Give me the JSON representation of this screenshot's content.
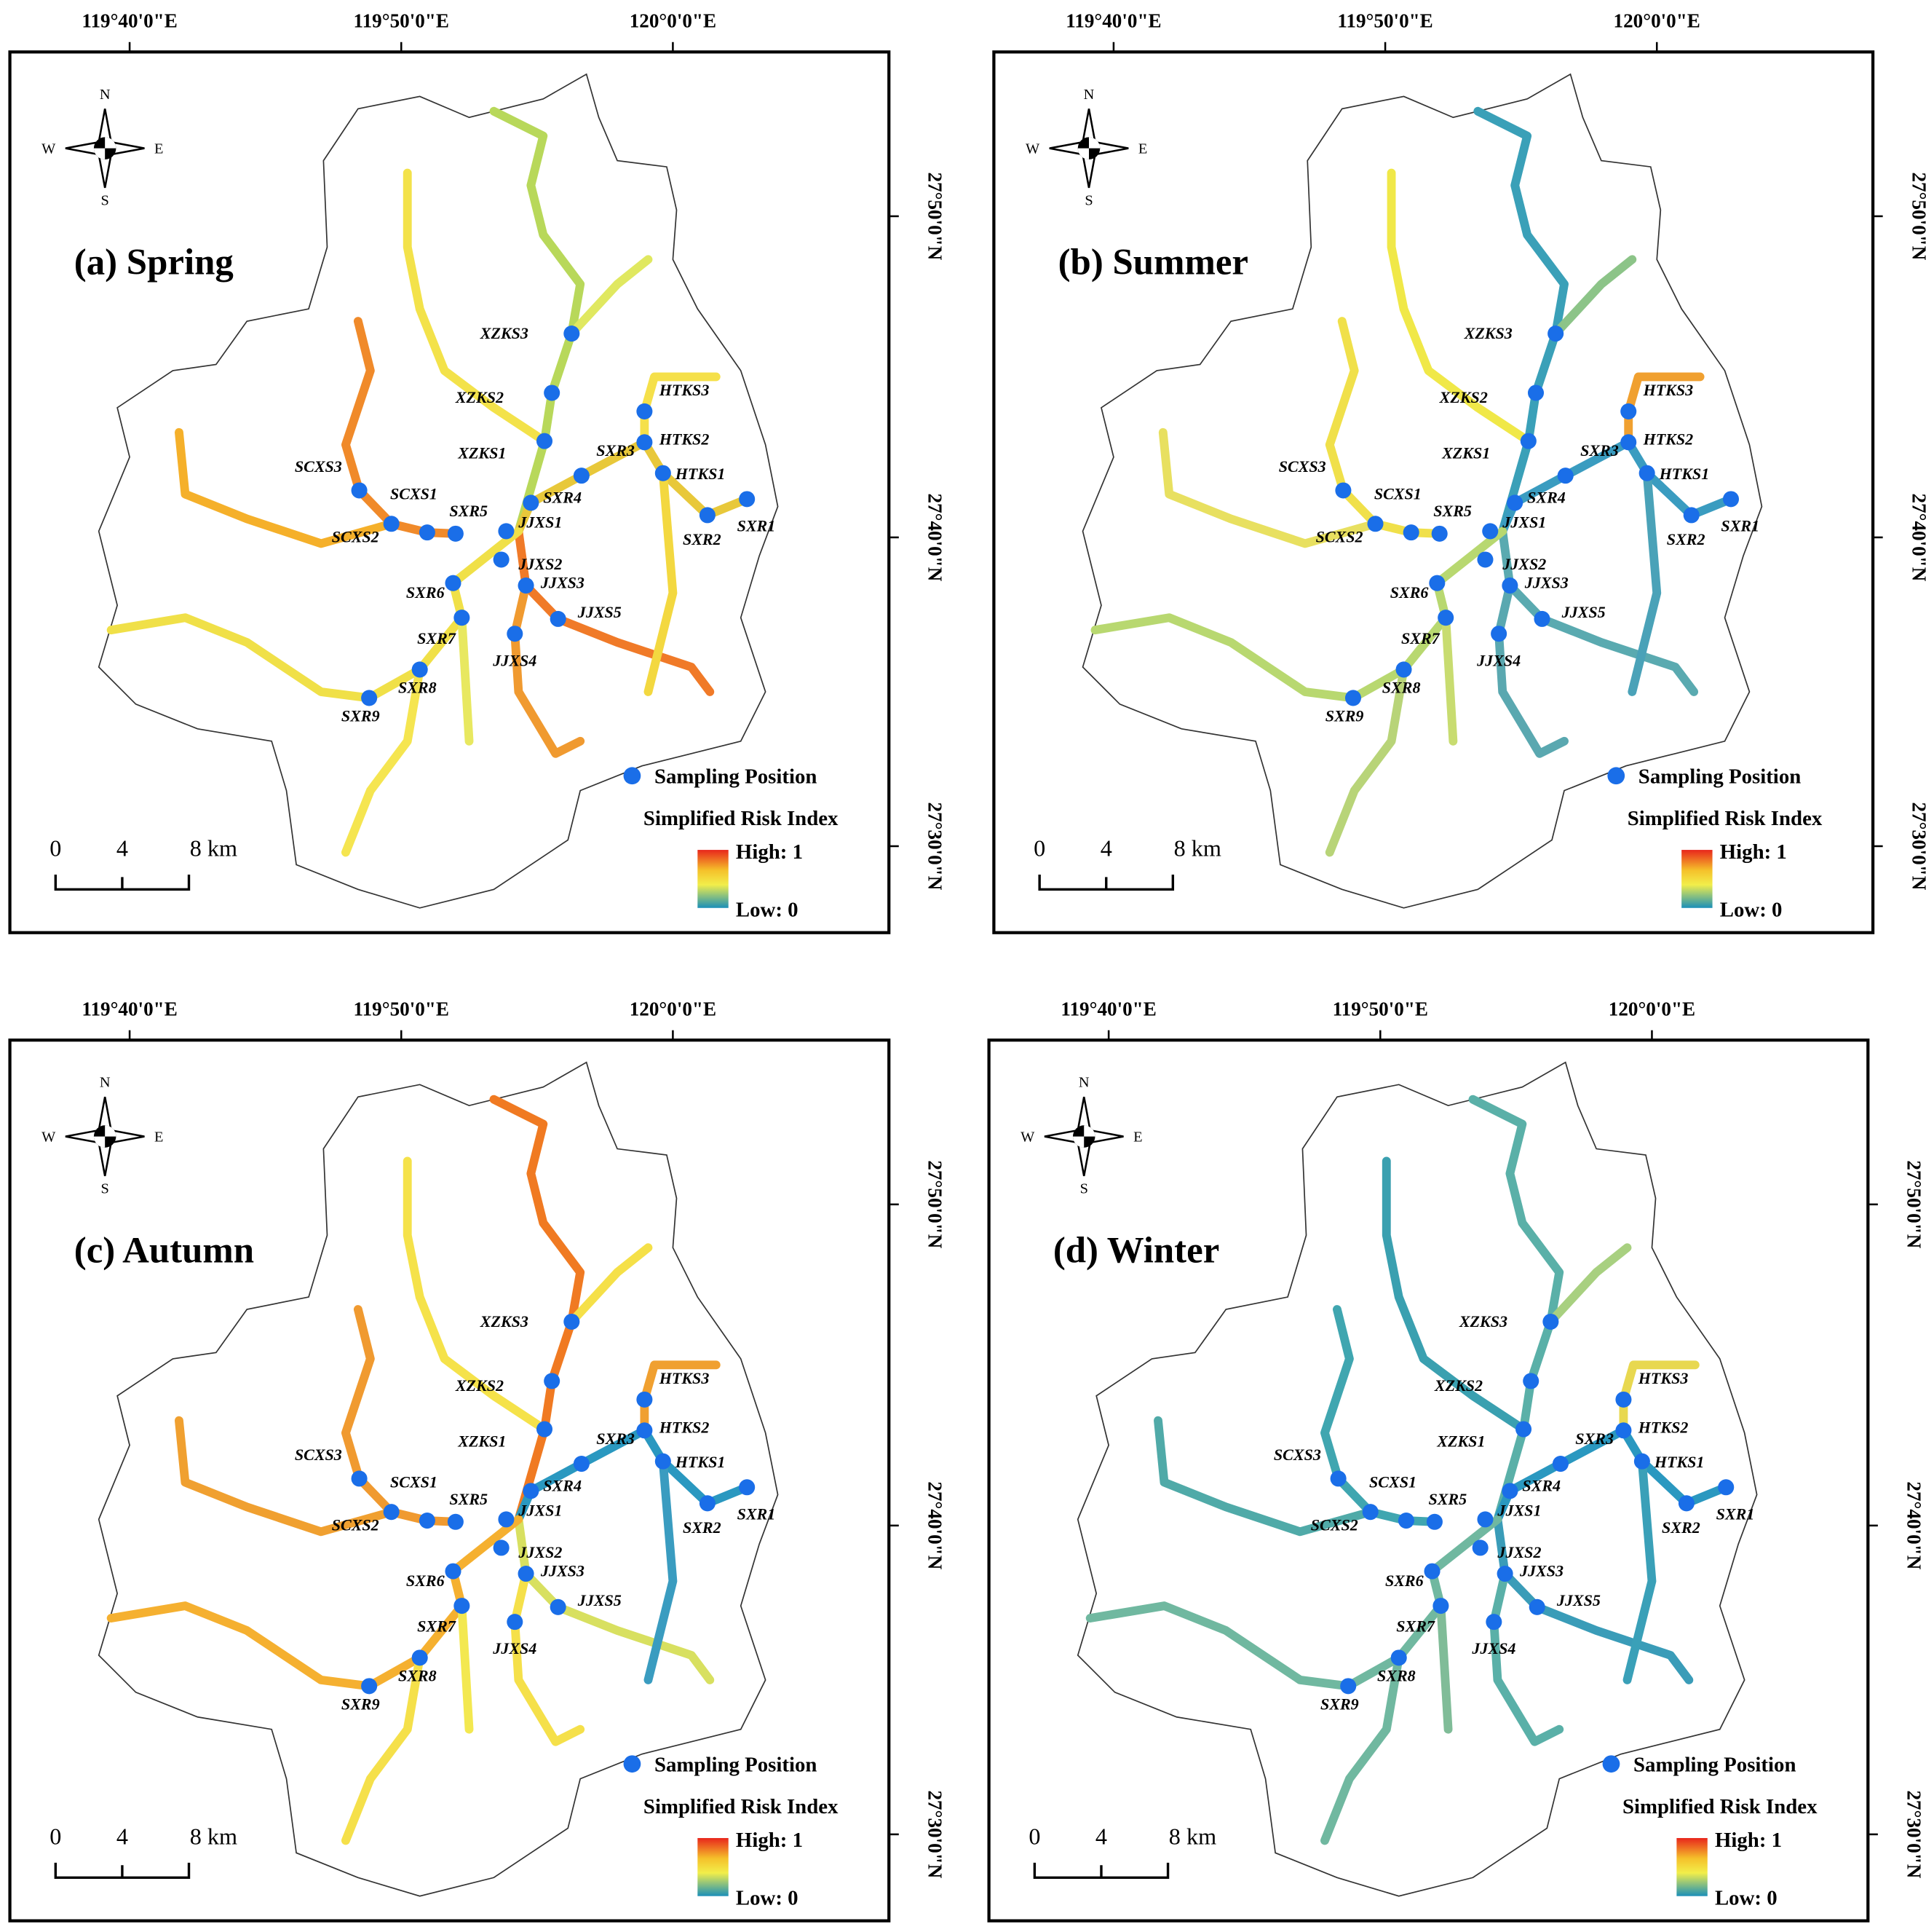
{
  "panels": [
    {
      "title": "(a) Spring",
      "lon_labels": [
        "119°40'0\"E",
        "119°50'0\"E",
        "120°0'0\"E"
      ],
      "lat_labels": [
        "27°50'0\"N",
        "27°40'0\"N",
        "27°30'0\"N"
      ],
      "compass": [
        "N",
        "S",
        "E",
        "W"
      ],
      "sites": [
        "XZKS3",
        "XZKS2",
        "XZKS1",
        "SXR3",
        "HTKS3",
        "HTKS2",
        "HTKS1",
        "SXR1",
        "SXR2",
        "SXR4",
        "JJXS1",
        "SXR5",
        "SCXS1",
        "SCXS3",
        "SCXS2",
        "JJXS2",
        "JJXS3",
        "JJXS5",
        "JJXS4",
        "SXR6",
        "SXR7",
        "SXR8",
        "SXR9"
      ],
      "legend": {
        "sampling": "Sampling Position",
        "index": "Simplified Risk Index",
        "high": "High: 1",
        "low": "Low: 0"
      },
      "scale": [
        "0",
        "4",
        "8 km"
      ]
    },
    {
      "title": "(b) Summer",
      "lon_labels": [
        "119°40'0\"E",
        "119°50'0\"E",
        "120°0'0\"E"
      ],
      "lat_labels": [
        "27°50'0\"N",
        "27°40'0\"N",
        "27°30'0\"N"
      ],
      "compass": [
        "N",
        "S",
        "E",
        "W"
      ],
      "sites": [
        "XZKS3",
        "XZKS2",
        "XZKS1",
        "SXR3",
        "HTKS3",
        "HTKS2",
        "HTKS1",
        "SXR1",
        "SXR2",
        "SXR4",
        "JJXS1",
        "SXR5",
        "SCXS1",
        "SCXS3",
        "SCXS2",
        "JJXS2",
        "JJXS3",
        "JJXS5",
        "JJXS4",
        "SXR6",
        "SXR7",
        "SXR8",
        "SXR9"
      ],
      "legend": {
        "sampling": "Sampling Position",
        "index": "Simplified Risk Index",
        "high": "High: 1",
        "low": "Low: 0"
      },
      "scale": [
        "0",
        "4",
        "8 km"
      ]
    },
    {
      "title": "(c) Autumn",
      "lon_labels": [
        "119°40'0\"E",
        "119°50'0\"E",
        "120°0'0\"E"
      ],
      "lat_labels": [
        "27°50'0\"N",
        "27°40'0\"N",
        "27°30'0\"N"
      ],
      "compass": [
        "N",
        "S",
        "E",
        "W"
      ],
      "sites": [
        "XZKS3",
        "XZKS2",
        "XZKS1",
        "SXR3",
        "HTKS3",
        "HTKS2",
        "HTKS1",
        "SXR1",
        "SXR2",
        "SXR4",
        "JJXS1",
        "SXR5",
        "SCXS1",
        "SCXS3",
        "SCXS2",
        "JJXS2",
        "JJXS3",
        "JJXS5",
        "JJXS4",
        "SXR6",
        "SXR7",
        "SXR8",
        "SXR9"
      ],
      "legend": {
        "sampling": "Sampling Position",
        "index": "Simplified Risk Index",
        "high": "High: 1",
        "low": "Low: 0"
      },
      "scale": [
        "0",
        "4",
        "8 km"
      ]
    },
    {
      "title": "(d) Winter",
      "lon_labels": [
        "119°40'0\"E",
        "119°50'0\"E",
        "120°0'0\"E"
      ],
      "lat_labels": [
        "27°50'0\"N",
        "27°40'0\"N",
        "27°30'0\"N"
      ],
      "compass": [
        "N",
        "S",
        "E",
        "W"
      ],
      "sites": [
        "XZKS3",
        "XZKS2",
        "XZKS1",
        "SXR3",
        "HTKS3",
        "HTKS2",
        "HTKS1",
        "SXR1",
        "SXR2",
        "SXR4",
        "JJXS1",
        "SXR5",
        "SCXS1",
        "SCXS3",
        "SCXS2",
        "JJXS2",
        "JJXS3",
        "JJXS5",
        "JJXS4",
        "SXR6",
        "SXR7",
        "SXR8",
        "SXR9"
      ],
      "legend": {
        "sampling": "Sampling Position",
        "index": "Simplified Risk Index",
        "high": "High: 1",
        "low": "Low: 0"
      },
      "scale": [
        "0",
        "4",
        "8 km"
      ]
    }
  ]
}
